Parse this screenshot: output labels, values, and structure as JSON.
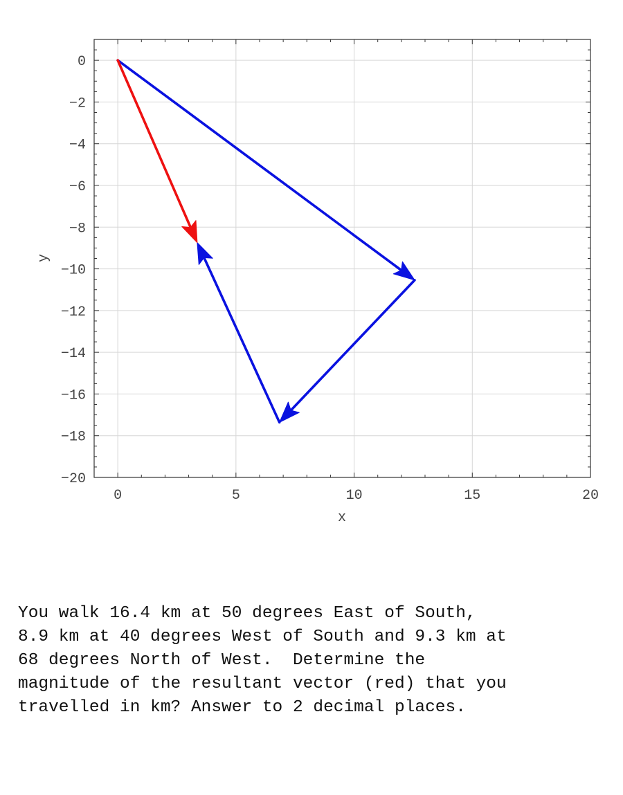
{
  "chart_data": {
    "type": "vector-diagram",
    "xlabel": "x",
    "ylabel": "y",
    "xlim": [
      -1,
      20
    ],
    "ylim": [
      -20,
      1
    ],
    "grid": true,
    "x_ticks": [
      0,
      5,
      10,
      15,
      20
    ],
    "y_ticks": [
      0,
      -2,
      -4,
      -6,
      -8,
      -10,
      -12,
      -14,
      -16,
      -18,
      -20
    ],
    "vectors": [
      {
        "from": [
          0,
          0
        ],
        "to": [
          12.56,
          -10.54
        ],
        "color": "#0a12e0"
      },
      {
        "from": [
          12.56,
          -10.54
        ],
        "to": [
          6.84,
          -17.36
        ],
        "color": "#0a12e0"
      },
      {
        "from": [
          6.84,
          -17.36
        ],
        "to": [
          3.36,
          -8.74
        ],
        "color": "#0a12e0"
      },
      {
        "from": [
          0,
          0
        ],
        "to": [
          3.36,
          -8.74
        ],
        "color": "#ee1111"
      }
    ]
  },
  "question": {
    "text": "You walk 16.4 km at 50 degrees East of South,\n8.9 km at 40 degrees West of South and 9.3 km at\n68 degrees North of West.  Determine the\nmagnitude of the resultant vector (red) that you\ntravelled in km? Answer to 2 decimal places."
  }
}
